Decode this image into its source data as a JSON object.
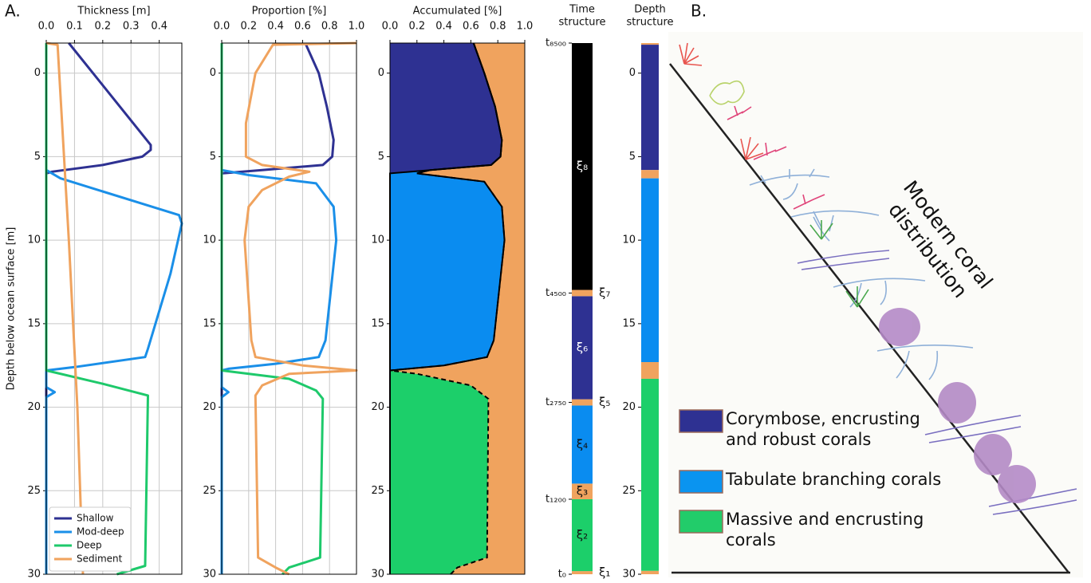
{
  "panel_labels": [
    "A.",
    "B."
  ],
  "chart_data": [
    {
      "type": "line",
      "title": "Thickness [m]",
      "ylabel": "Depth below ocean surface [m]",
      "xlim": [
        0,
        0.48
      ],
      "xticks": [
        {
          "value": 0,
          "label": "0.0"
        },
        0.1,
        0.2,
        0.3,
        0.4
      ],
      "ylim": [
        -1.8,
        30
      ],
      "y_inverted": true,
      "yticks": [
        0,
        5,
        10,
        15,
        20,
        25,
        30
      ],
      "grid": true,
      "legend": "lower left",
      "series": [
        {
          "name": "Shallow",
          "color": "#2e3192",
          "depth": [
            -1.8,
            4.3,
            4.6,
            5.0,
            5.5,
            5.9,
            6.0,
            30
          ],
          "values": [
            0.08,
            0.37,
            0.37,
            0.34,
            0.2,
            0.02,
            0,
            0
          ]
        },
        {
          "name": "Mod-deep",
          "color": "#1a8fe8",
          "depth": [
            -1.8,
            5.8,
            6.3,
            8.5,
            9.0,
            12.0,
            16.5,
            17.0,
            17.6,
            17.8,
            18.8,
            19.1,
            19.4,
            30
          ],
          "values": [
            0,
            0,
            0.05,
            0.47,
            0.48,
            0.44,
            0.36,
            0.35,
            0.1,
            0,
            0,
            0.03,
            0,
            0
          ]
        },
        {
          "name": "Deep",
          "color": "#1ec96b",
          "depth": [
            -1.8,
            17.8,
            18.6,
            19.3,
            29.5,
            30
          ],
          "values": [
            0,
            0,
            0.2,
            0.36,
            0.35,
            0.25
          ]
        },
        {
          "name": "Sediment",
          "color": "#f0a35e",
          "depth": [
            -1.8,
            -1.7,
            10,
            20,
            30
          ],
          "values": [
            0,
            0.04,
            0.08,
            0.11,
            0.13
          ]
        }
      ]
    },
    {
      "type": "line",
      "title": "Proportion [%]",
      "xlim": [
        0,
        1
      ],
      "xticks": [
        {
          "value": 0,
          "label": "0.0"
        },
        0.2,
        0.4,
        0.6,
        0.8,
        {
          "value": 1,
          "label": "1.0"
        }
      ],
      "ylim": [
        -1.8,
        30
      ],
      "y_inverted": true,
      "yticks": [
        0,
        5,
        10,
        15,
        20,
        25,
        30
      ],
      "grid": true,
      "series": [
        {
          "color": "#2e3192",
          "depth": [
            -1.8,
            0,
            2,
            4,
            5,
            5.5,
            5.8,
            6,
            30
          ],
          "values": [
            0.62,
            0.72,
            0.78,
            0.83,
            0.82,
            0.75,
            0.3,
            0,
            0
          ]
        },
        {
          "color": "#1a8fe8",
          "depth": [
            -1.8,
            5.8,
            6.1,
            6.6,
            8,
            10,
            16,
            17,
            17.4,
            17.7,
            17.8,
            18.8,
            19.1,
            19.4,
            30
          ],
          "values": [
            0,
            0,
            0.2,
            0.7,
            0.83,
            0.85,
            0.77,
            0.72,
            0.4,
            0.05,
            0,
            0,
            0.05,
            0,
            0
          ]
        },
        {
          "color": "#1ec96b",
          "depth": [
            -1.8,
            17.8,
            18.3,
            19,
            19.5,
            29,
            29.6,
            30
          ],
          "values": [
            0,
            0,
            0.5,
            0.7,
            0.75,
            0.73,
            0.5,
            0.45
          ]
        },
        {
          "color": "#f0a35e",
          "depth": [
            -1.8,
            -1.7,
            0,
            3,
            5,
            5.5,
            5.9,
            6.2,
            7,
            8,
            10,
            16,
            17,
            17.5,
            17.8,
            18,
            18.7,
            19.3,
            29,
            29.6,
            30
          ],
          "values": [
            1.0,
            0.38,
            0.25,
            0.18,
            0.18,
            0.3,
            0.65,
            0.5,
            0.3,
            0.2,
            0.17,
            0.22,
            0.25,
            0.6,
            1.0,
            0.5,
            0.3,
            0.25,
            0.27,
            0.4,
            0.5
          ]
        }
      ]
    },
    {
      "type": "stacked_area",
      "title": "Accumulated [%]",
      "xlim": [
        0,
        1
      ],
      "xticks": [
        {
          "value": 0,
          "label": "0.0"
        },
        0.2,
        0.4,
        0.6,
        0.8,
        {
          "value": 1,
          "label": "1.0"
        }
      ],
      "ylim": [
        -1.8,
        30
      ],
      "y_inverted": true,
      "yticks": [
        0,
        5,
        10,
        15,
        20,
        25,
        30
      ],
      "grid": true,
      "y": [
        -1.8,
        0,
        2,
        4,
        5,
        5.5,
        5.8,
        6,
        6.5,
        8,
        10,
        16,
        17,
        17.5,
        17.8,
        18,
        18.7,
        19.5,
        29,
        29.6,
        30
      ],
      "series": [
        {
          "color": "#2e3192",
          "values": [
            0.62,
            0.7,
            0.78,
            0.83,
            0.82,
            0.75,
            0.3,
            0,
            0,
            0,
            0,
            0,
            0,
            0,
            0,
            0,
            0,
            0,
            0,
            0,
            0
          ]
        },
        {
          "color": "#0a8cf0",
          "values": [
            0,
            0,
            0,
            0,
            0,
            0,
            0,
            0.2,
            0.7,
            0.83,
            0.85,
            0.77,
            0.72,
            0.4,
            0,
            0,
            0,
            0,
            0,
            0,
            0
          ]
        },
        {
          "color": "#1ccf6a",
          "values": [
            0,
            0,
            0,
            0,
            0,
            0,
            0,
            0,
            0,
            0,
            0,
            0,
            0,
            0,
            0,
            0.2,
            0.6,
            0.73,
            0.72,
            0.5,
            0.45
          ]
        },
        {
          "color": "#f0a35e",
          "values": [
            0.38,
            0.3,
            0.22,
            0.17,
            0.18,
            0.25,
            0.7,
            0.8,
            0.3,
            0.17,
            0.15,
            0.23,
            0.28,
            0.6,
            1.0,
            0.8,
            0.4,
            0.27,
            0.28,
            0.5,
            0.55
          ]
        }
      ]
    },
    {
      "type": "segments",
      "title": [
        "Time",
        "structure"
      ],
      "ylim": [
        0,
        8500
      ],
      "yticks": [
        {
          "value": 0,
          "label": "t₀"
        },
        {
          "value": 1200,
          "label": "t₁₂₀₀"
        },
        {
          "value": 2750,
          "label": "t₂₇₅₀"
        },
        {
          "value": 4500,
          "label": "t₄₅₀₀"
        },
        {
          "value": 8500,
          "label": "t₈₅₀₀"
        }
      ],
      "segments": [
        {
          "name": "ξ₁",
          "start": 0,
          "end": 50,
          "color": "#f0a35e"
        },
        {
          "name": "ξ₂",
          "start": 50,
          "end": 1200,
          "color": "#1ccf6a"
        },
        {
          "name": "ξ₃",
          "start": 1200,
          "end": 1450,
          "color": "#f0a35e"
        },
        {
          "name": "ξ₄",
          "start": 1450,
          "end": 2700,
          "color": "#0a8cf0"
        },
        {
          "name": "ξ₅",
          "start": 2700,
          "end": 2800,
          "color": "#f0a35e"
        },
        {
          "name": "ξ₆",
          "start": 2800,
          "end": 4450,
          "color": "#2e3192"
        },
        {
          "name": "ξ₇",
          "start": 4450,
          "end": 4550,
          "color": "#f0a35e"
        },
        {
          "name": "ξ₈",
          "start": 4550,
          "end": 8500,
          "color": "#000000"
        }
      ]
    },
    {
      "type": "segments",
      "title": [
        "Depth",
        "structure"
      ],
      "ylim": [
        -1.8,
        30
      ],
      "y_inverted": true,
      "yticks": [
        0,
        5,
        10,
        15,
        20,
        25,
        30
      ],
      "segments": [
        {
          "start": -1.8,
          "end": -1.7,
          "color": "#f0a35e"
        },
        {
          "start": -1.7,
          "end": 5.8,
          "color": "#2e3192"
        },
        {
          "start": 5.8,
          "end": 6.3,
          "color": "#f0a35e"
        },
        {
          "start": 6.3,
          "end": 17.3,
          "color": "#0a8cf0"
        },
        {
          "start": 17.3,
          "end": 18.3,
          "color": "#f0a35e"
        },
        {
          "start": 18.3,
          "end": 29.8,
          "color": "#1ccf6a"
        },
        {
          "start": 29.8,
          "end": 30,
          "color": "#f0a35e"
        }
      ]
    }
  ],
  "illustration": {
    "title_lines": [
      "Modern coral",
      "distribution"
    ],
    "legend": [
      {
        "lines": [
          "Corymbose, encrusting",
          "and robust corals"
        ],
        "color": "#2e3192"
      },
      {
        "lines": [
          "Tabulate branching corals"
        ],
        "color": "#0a94f0"
      },
      {
        "lines": [
          "Massive and encrusting",
          "corals"
        ],
        "color": "#22cc6a"
      }
    ]
  }
}
